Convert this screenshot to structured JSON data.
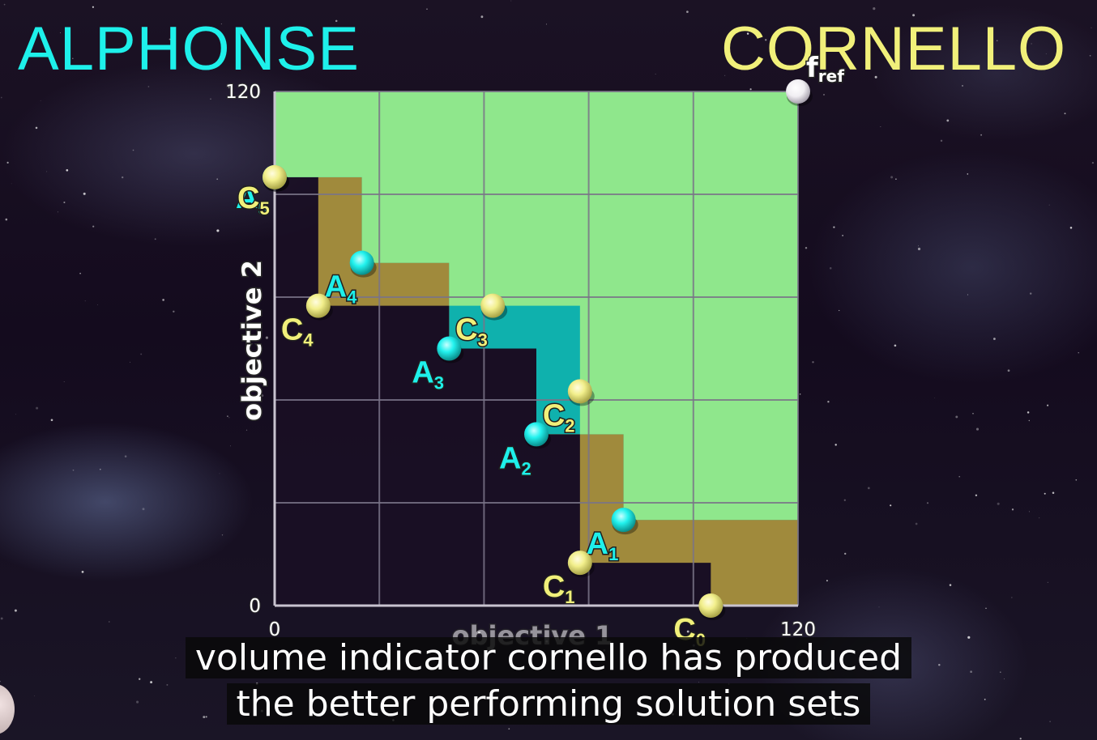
{
  "header": {
    "left_name": "ALPHONSE",
    "right_name": "CORNELLO"
  },
  "caption": {
    "line1": "volume indicator cornello has produced",
    "line2": "the better performing solution sets"
  },
  "colors": {
    "alphonse": "#1ef0ea",
    "cornello": "#f1f07a",
    "dominated_both": "#8fe78c",
    "dominated_cornello_only": "#a08a3c",
    "dominated_alphonse_only": "#0fb1ad",
    "grid": "#7a7488",
    "reference_point": "#ffffff"
  },
  "chart_data": {
    "type": "scatter",
    "xlabel": "objective 1",
    "ylabel": "objective 2",
    "xlim": [
      0,
      120
    ],
    "ylim": [
      0,
      120
    ],
    "ticks": {
      "x": [
        "0",
        "120"
      ],
      "y": [
        "0",
        "120"
      ]
    },
    "grid": true,
    "grid_step": 24,
    "reference_point": {
      "label": "f",
      "subscript": "ref",
      "x": 120,
      "y": 120
    },
    "series": [
      {
        "name": "ALPHONSE",
        "marker_letter": "A",
        "points": [
          {
            "label": "1",
            "x": 80,
            "y": 20
          },
          {
            "label": "2",
            "x": 60,
            "y": 40
          },
          {
            "label": "3",
            "x": 40,
            "y": 60
          },
          {
            "label": "4",
            "x": 20,
            "y": 80
          },
          {
            "label": "5",
            "x": 0,
            "y": 100
          }
        ]
      },
      {
        "name": "CORNELLO",
        "marker_letter": "C",
        "points": [
          {
            "label": "0",
            "x": 100,
            "y": 0
          },
          {
            "label": "1",
            "x": 70,
            "y": 10
          },
          {
            "label": "2",
            "x": 70,
            "y": 50
          },
          {
            "label": "3",
            "x": 50,
            "y": 70
          },
          {
            "label": "4",
            "x": 10,
            "y": 70
          },
          {
            "label": "5",
            "x": 0,
            "y": 100
          }
        ]
      }
    ]
  }
}
